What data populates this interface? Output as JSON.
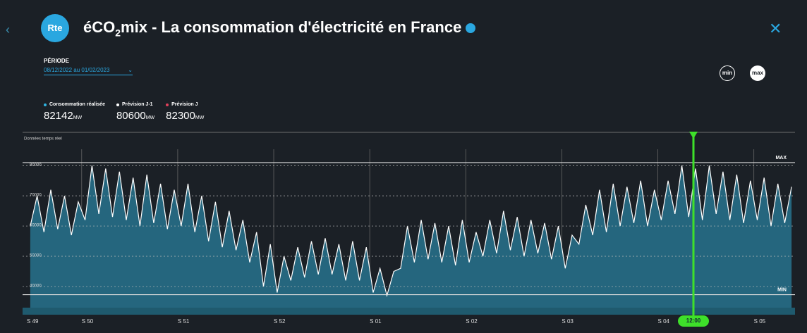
{
  "header": {
    "logo": "Rte",
    "title_prefix": "éCO",
    "title_sub": "2",
    "title_suffix": "mix - La consommation d'électricité en France",
    "period_label": "PÉRIODE",
    "period_value": "08/12/2022 au 01/02/2023",
    "btn_min": "min",
    "btn_max": "max",
    "legend": [
      {
        "name": "Consommation réalisée",
        "value": 82142,
        "unit": "MW",
        "color": "#2fb3e0"
      },
      {
        "name": "Prévision J-1",
        "value": 80600,
        "unit": "MW",
        "color": "#ffffff"
      },
      {
        "name": "Prévision J",
        "value": 82300,
        "unit": "MW",
        "color": "#e0405a"
      }
    ]
  },
  "chart_data": {
    "type": "area",
    "subtitle": "Données temps réel",
    "color": "#25667e",
    "line_color": "#ffffff",
    "values": [
      60000,
      70000,
      58000,
      72000,
      59000,
      70000,
      57000,
      68000,
      62000,
      80000,
      64000,
      79000,
      63000,
      78000,
      62000,
      76000,
      60000,
      77000,
      61000,
      74000,
      59000,
      72000,
      60000,
      74000,
      58000,
      70000,
      55000,
      68000,
      53000,
      65000,
      52000,
      62000,
      48000,
      58000,
      40000,
      54000,
      38000,
      50000,
      42000,
      53000,
      43000,
      55000,
      44000,
      56000,
      44000,
      54000,
      42000,
      55000,
      42000,
      53000,
      38000,
      46000,
      37000,
      45000,
      46000,
      60000,
      48000,
      62000,
      49000,
      61000,
      48000,
      60000,
      47000,
      62000,
      48000,
      58000,
      50000,
      62000,
      51000,
      65000,
      52000,
      63000,
      50000,
      62000,
      51000,
      61000,
      49000,
      60000,
      46000,
      57000,
      54000,
      67000,
      57000,
      72000,
      58000,
      74000,
      60000,
      73000,
      61000,
      75000,
      60000,
      72000,
      62000,
      75000,
      64000,
      80000,
      63000,
      79000,
      62000,
      80000,
      64000,
      78000,
      62000,
      77000,
      61000,
      75000,
      62000,
      76000,
      60000,
      74000,
      61000,
      73000
    ],
    "ylim": [
      33000,
      91000
    ],
    "yticks": [
      40000,
      50000,
      60000,
      70000,
      80000
    ],
    "grid": true,
    "max_line": {
      "label": "MAX",
      "value": 81000
    },
    "min_line": {
      "label": "MIN",
      "value": 37300
    },
    "weeks": [
      "S 49",
      "S 50",
      "S 51",
      "S 52",
      "S 01",
      "S 02",
      "S 03",
      "S 04",
      "S 05"
    ],
    "cursor_label": "12:00"
  }
}
